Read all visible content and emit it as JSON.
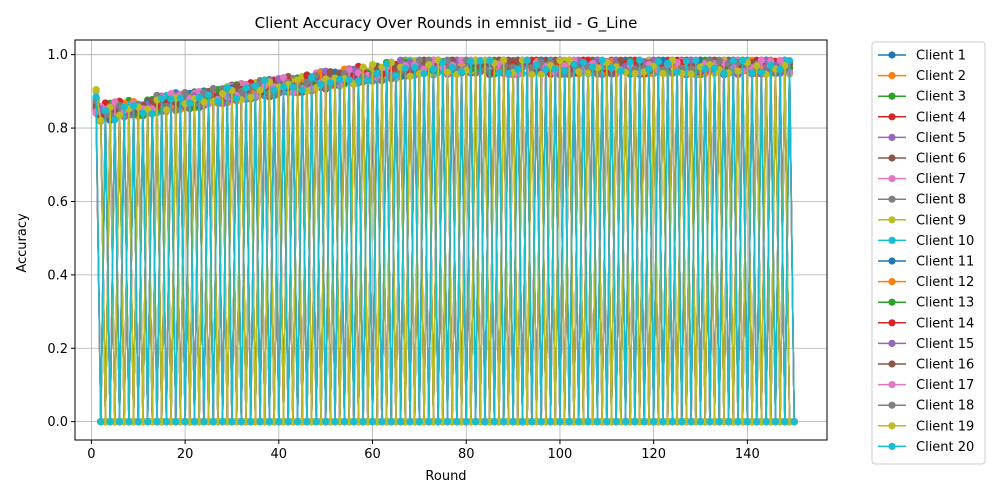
{
  "chart_data": {
    "type": "line",
    "title": "Client Accuracy Over Rounds in emnist_iid - G_Line",
    "xlabel": "Round",
    "ylabel": "Accuracy",
    "xlim": [
      -3.5,
      157
    ],
    "ylim": [
      -0.05,
      1.04
    ],
    "x_ticks": [
      0,
      20,
      40,
      60,
      80,
      100,
      120,
      140
    ],
    "y_ticks": [
      0.0,
      0.2,
      0.4,
      0.6,
      0.8,
      1.0
    ],
    "x_tick_labels": [
      "0",
      "20",
      "40",
      "60",
      "80",
      "100",
      "120",
      "140"
    ],
    "y_tick_labels": [
      "0.0",
      "0.2",
      "0.4",
      "0.6",
      "0.8",
      "1.0"
    ],
    "grid": true,
    "legend_position": "outside-right",
    "rounds": [
      1,
      150
    ],
    "marker": "circle",
    "series": [
      {
        "name": "Client 1",
        "color": "#1f77b4",
        "phase": 0,
        "start": 0.88
      },
      {
        "name": "Client 2",
        "color": "#ff7f0e",
        "phase": 1,
        "start": 0.875
      },
      {
        "name": "Client 3",
        "color": "#2ca02c",
        "phase": 0,
        "start": 0.85
      },
      {
        "name": "Client 4",
        "color": "#d62728",
        "phase": 1,
        "start": 0.845
      },
      {
        "name": "Client 5",
        "color": "#9467bd",
        "phase": 0,
        "start": 0.86
      },
      {
        "name": "Client 6",
        "color": "#8c564b",
        "phase": 1,
        "start": 0.855
      },
      {
        "name": "Client 7",
        "color": "#e377c2",
        "phase": 0,
        "start": 0.84
      },
      {
        "name": "Client 8",
        "color": "#7f7f7f",
        "phase": 1,
        "start": 0.87
      },
      {
        "name": "Client 9",
        "color": "#bcbd22",
        "phase": 0,
        "start": 0.905
      },
      {
        "name": "Client 10",
        "color": "#17becf",
        "phase": 1,
        "start": 0.88
      },
      {
        "name": "Client 11",
        "color": "#1f77b4",
        "phase": 0,
        "start": 0.865
      },
      {
        "name": "Client 12",
        "color": "#ff7f0e",
        "phase": 1,
        "start": 0.86
      },
      {
        "name": "Client 13",
        "color": "#2ca02c",
        "phase": 0,
        "start": 0.855
      },
      {
        "name": "Client 14",
        "color": "#d62728",
        "phase": 1,
        "start": 0.85
      },
      {
        "name": "Client 15",
        "color": "#9467bd",
        "phase": 0,
        "start": 0.87
      },
      {
        "name": "Client 16",
        "color": "#8c564b",
        "phase": 1,
        "start": 0.86
      },
      {
        "name": "Client 17",
        "color": "#e377c2",
        "phase": 0,
        "start": 0.845
      },
      {
        "name": "Client 18",
        "color": "#7f7f7f",
        "phase": 1,
        "start": 0.875
      },
      {
        "name": "Client 19",
        "color": "#bcbd22",
        "phase": 0,
        "start": 0.9
      },
      {
        "name": "Client 20",
        "color": "#17becf",
        "phase": 1,
        "start": 0.885
      }
    ]
  }
}
